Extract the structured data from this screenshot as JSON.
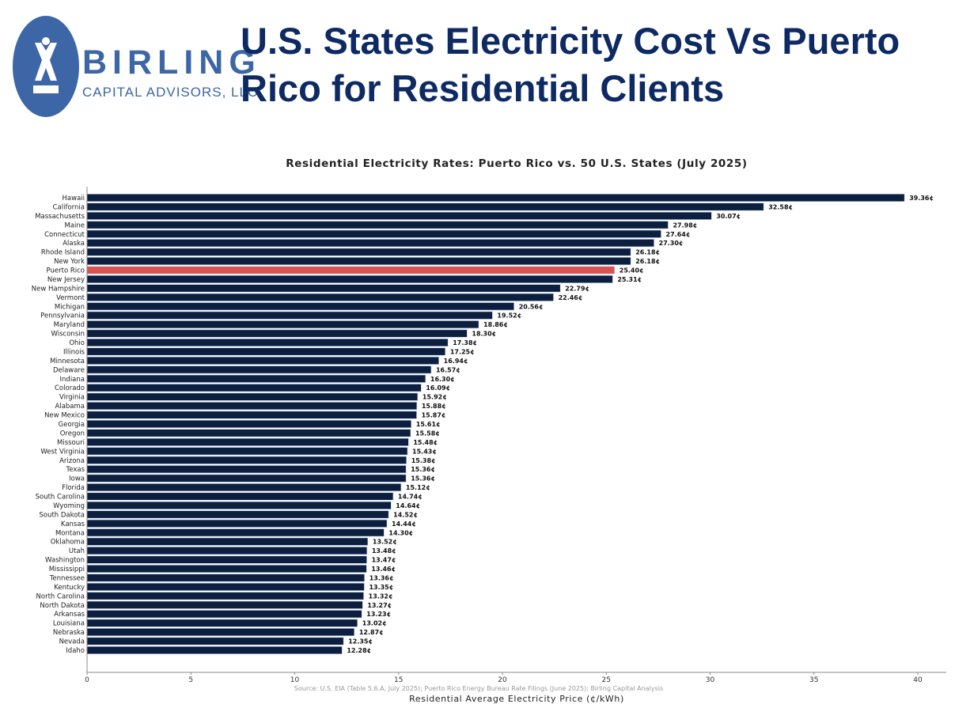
{
  "header": {
    "title": "U.S. States Electricity Cost Vs Puerto Rico for Residential Clients",
    "logo": {
      "name": "BIRLING",
      "subtitle": "CAPITAL ADVISORS, LLC",
      "color": "#3c66a6"
    }
  },
  "chart_data": {
    "type": "bar",
    "orientation": "horizontal",
    "title": "Residential Electricity Rates: Puerto Rico vs. 50 U.S. States (July 2025)",
    "xlabel": "Residential Average Electricity Price (¢/kWh)",
    "ylabel": "",
    "source": "Source: U.S. EIA (Table 5.6.A, July 2025); Puerto Rico Energy Bureau Rate Filings (June 2025); Birling Capital Analysis",
    "xlim": [
      0,
      40
    ],
    "xticks": [
      "0",
      "5",
      "10",
      "15",
      "20",
      "25",
      "30",
      "35",
      "40"
    ],
    "grid": false,
    "value_suffix": "¢",
    "colors": {
      "default": "#0c1f3f",
      "highlight": "#d9534f",
      "highlight_category": "Puerto Rico"
    },
    "categories": [
      "Hawaii",
      "California",
      "Massachusetts",
      "Maine",
      "Connecticut",
      "Alaska",
      "Rhode Island",
      "New York",
      "Puerto Rico",
      "New Jersey",
      "New Hampshire",
      "Vermont",
      "Michigan",
      "Pennsylvania",
      "Maryland",
      "Wisconsin",
      "Ohio",
      "Illinois",
      "Minnesota",
      "Delaware",
      "Indiana",
      "Colorado",
      "Virginia",
      "Alabama",
      "New Mexico",
      "Georgia",
      "Oregon",
      "Missouri",
      "West Virginia",
      "Arizona",
      "Texas",
      "Iowa",
      "Florida",
      "South Carolina",
      "Wyoming",
      "South Dakota",
      "Kansas",
      "Montana",
      "Oklahoma",
      "Utah",
      "Washington",
      "Mississippi",
      "Tennessee",
      "Kentucky",
      "North Carolina",
      "North Dakota",
      "Arkansas",
      "Louisiana",
      "Nebraska",
      "Nevada",
      "Idaho"
    ],
    "values": [
      39.36,
      32.58,
      30.07,
      27.98,
      27.64,
      27.3,
      26.18,
      26.18,
      25.4,
      25.31,
      22.79,
      22.46,
      20.56,
      19.52,
      18.86,
      18.3,
      17.38,
      17.25,
      16.94,
      16.57,
      16.3,
      16.09,
      15.92,
      15.88,
      15.87,
      15.61,
      15.58,
      15.48,
      15.43,
      15.38,
      15.36,
      15.36,
      15.12,
      14.74,
      14.64,
      14.52,
      14.44,
      14.3,
      13.52,
      13.48,
      13.47,
      13.46,
      13.36,
      13.35,
      13.32,
      13.27,
      13.23,
      13.02,
      12.87,
      12.35,
      12.28
    ]
  }
}
